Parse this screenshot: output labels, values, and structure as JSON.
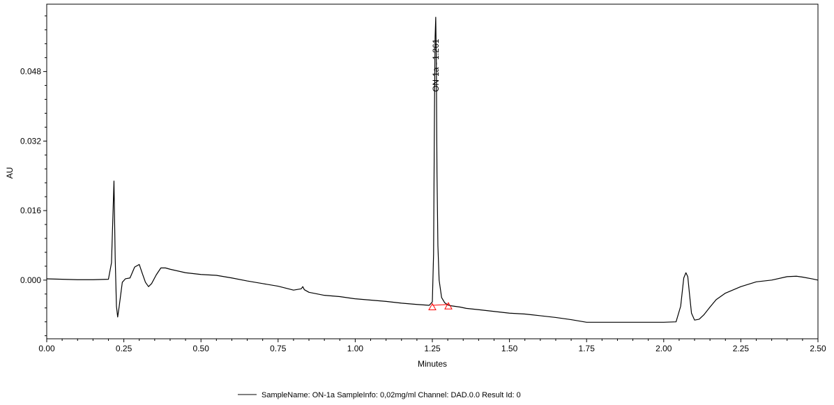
{
  "chart_data": {
    "type": "line",
    "title": "",
    "xlabel": "Minutes",
    "ylabel": "AU",
    "xlim": [
      0.0,
      2.5
    ],
    "ylim": [
      -0.0135,
      0.0635
    ],
    "x_ticks": [
      "0.00",
      "0.25",
      "0.50",
      "0.75",
      "1.00",
      "1.25",
      "1.50",
      "1.75",
      "2.00",
      "2.25",
      "2.50"
    ],
    "y_ticks": [
      "0.000",
      "0.016",
      "0.032",
      "0.048"
    ],
    "x_tick_values": [
      0.0,
      0.25,
      0.5,
      0.75,
      1.0,
      1.25,
      1.5,
      1.75,
      2.0,
      2.25,
      2.5
    ],
    "y_tick_values": [
      0.0,
      0.016,
      0.032,
      0.048
    ],
    "grid": false,
    "legend": {
      "position": "bottom",
      "entries": [
        "SampleName: ON-1a  SampleInfo: 0,02mg/ml Channel: DAD.0.0 Result Id: 0"
      ]
    },
    "series": [
      {
        "color": "#000000",
        "x": [
          0.0,
          0.05,
          0.1,
          0.15,
          0.2,
          0.21,
          0.218,
          0.222,
          0.226,
          0.23,
          0.235,
          0.245,
          0.255,
          0.27,
          0.285,
          0.3,
          0.31,
          0.32,
          0.33,
          0.34,
          0.355,
          0.37,
          0.385,
          0.4,
          0.45,
          0.5,
          0.55,
          0.6,
          0.65,
          0.7,
          0.75,
          0.8,
          0.825,
          0.83,
          0.835,
          0.85,
          0.9,
          0.95,
          1.0,
          1.05,
          1.1,
          1.15,
          1.2,
          1.24,
          1.25,
          1.254,
          1.257,
          1.259,
          1.261,
          1.263,
          1.265,
          1.268,
          1.272,
          1.28,
          1.29,
          1.3,
          1.31,
          1.32,
          1.34,
          1.36,
          1.4,
          1.45,
          1.5,
          1.55,
          1.6,
          1.65,
          1.7,
          1.75,
          1.8,
          1.85,
          1.9,
          1.95,
          2.0,
          2.04,
          2.055,
          2.065,
          2.072,
          2.078,
          2.084,
          2.09,
          2.1,
          2.115,
          2.13,
          2.15,
          2.17,
          2.2,
          2.25,
          2.3,
          2.35,
          2.4,
          2.43,
          2.45,
          2.48,
          2.5
        ],
        "y": [
          0.0003,
          0.0002,
          0.0001,
          0.0001,
          0.0002,
          0.004,
          0.0228,
          0.005,
          -0.006,
          -0.0085,
          -0.006,
          -0.0005,
          0.0003,
          0.0005,
          0.003,
          0.0036,
          0.0015,
          -0.0005,
          -0.0015,
          -0.0008,
          0.0012,
          0.0028,
          0.0028,
          0.0025,
          0.0017,
          0.0013,
          0.0011,
          0.0005,
          -0.0002,
          -0.0008,
          -0.0014,
          -0.0023,
          -0.002,
          -0.0015,
          -0.0022,
          -0.0028,
          -0.0035,
          -0.0038,
          -0.0043,
          -0.0046,
          -0.0049,
          -0.0053,
          -0.0056,
          -0.0058,
          -0.005,
          0.006,
          0.04,
          0.056,
          0.0605,
          0.05,
          0.025,
          0.008,
          0.0,
          -0.004,
          -0.0052,
          -0.0057,
          -0.0059,
          -0.006,
          -0.0062,
          -0.0065,
          -0.0068,
          -0.0072,
          -0.0076,
          -0.0078,
          -0.0082,
          -0.0086,
          -0.0091,
          -0.0097,
          -0.0097,
          -0.0097,
          -0.0097,
          -0.0097,
          -0.0097,
          -0.0096,
          -0.006,
          0.0005,
          0.0017,
          0.0008,
          -0.0035,
          -0.0076,
          -0.0092,
          -0.009,
          -0.008,
          -0.0062,
          -0.0045,
          -0.003,
          -0.0015,
          -0.0004,
          0.0,
          0.0008,
          0.0009,
          0.0007,
          0.0003,
          0.0
        ]
      }
    ],
    "baseline": {
      "color": "#ff0000",
      "x": [
        1.25,
        1.302
      ],
      "y": [
        -0.0058,
        -0.0056
      ],
      "markers": [
        {
          "x": 1.25,
          "y": -0.0062
        },
        {
          "x": 1.302,
          "y": -0.006
        }
      ]
    },
    "annotations": [
      {
        "text": "ON-1a - 1.261",
        "x": 1.261,
        "y": 0.0555,
        "rotation": -90
      }
    ]
  }
}
